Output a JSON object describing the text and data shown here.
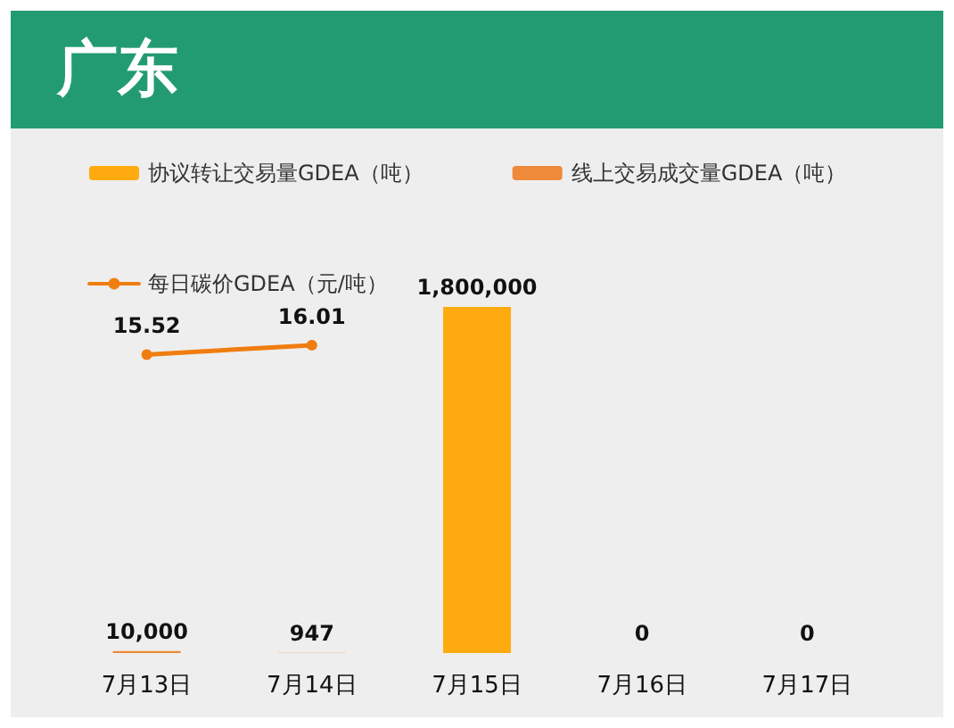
{
  "chart_data": {
    "type": "bar",
    "title": "广东",
    "categories": [
      "7月13日",
      "7月14日",
      "7月15日",
      "7月16日",
      "7月17日"
    ],
    "series": [
      {
        "name": "协议转让交易量GDEA（吨）",
        "color": "#ffab0f",
        "values": [
          null,
          null,
          1800000,
          0,
          0
        ],
        "value_labels": [
          null,
          null,
          "1,800,000",
          "0",
          "0"
        ]
      },
      {
        "name": "线上交易成交量GDEA（吨）",
        "color": "#ee8a3a",
        "values": [
          10000,
          947,
          null,
          null,
          null
        ],
        "value_labels": [
          "10,000",
          "947",
          null,
          null,
          null
        ]
      },
      {
        "type": "line",
        "name": "每日碳价GDEA（元/吨）",
        "color": "#f07d0f",
        "axis": "y2",
        "values": [
          15.52,
          16.01,
          null,
          null,
          null
        ],
        "value_labels": [
          "15.52",
          "16.01",
          null,
          null,
          null
        ]
      }
    ],
    "tick_labels": "x",
    "legend": "top left",
    "marker": "circle",
    "grid": false
  }
}
